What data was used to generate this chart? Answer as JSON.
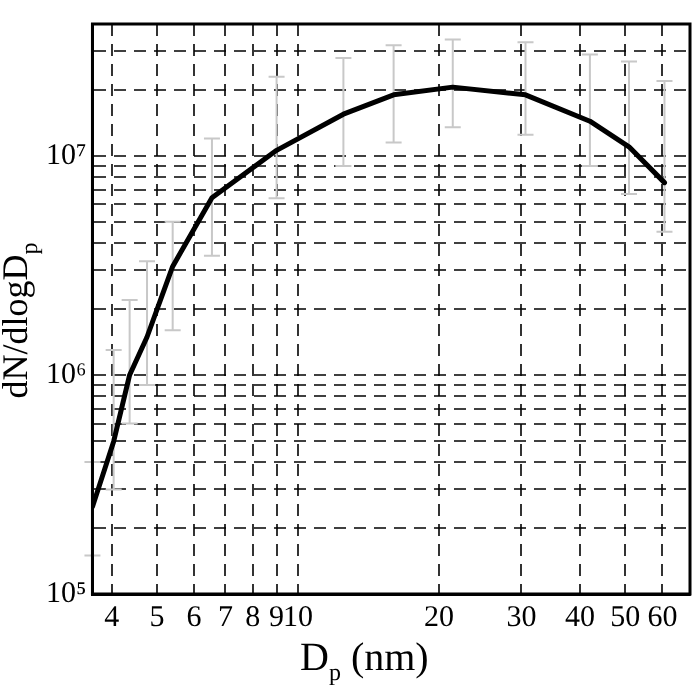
{
  "chart_data": {
    "type": "line",
    "xlabel": "D$_{p}$ (nm)",
    "ylabel": "dN/dlogD$_{p}$",
    "log": "xy",
    "grid": true,
    "marker": "none",
    "line_style": "solid",
    "xlim": [
      3.64,
      68.7
    ],
    "ylim": [
      100000,
      40000000
    ],
    "xticks": [
      4,
      5,
      6,
      7,
      8,
      9,
      10,
      20,
      30,
      40,
      50,
      60
    ],
    "yticks": [
      {
        "value": 100000,
        "label": "10⁵"
      },
      {
        "value": 200000,
        "label": null
      },
      {
        "value": 300000,
        "label": null
      },
      {
        "value": 400000,
        "label": null
      },
      {
        "value": 500000,
        "label": null
      },
      {
        "value": 600000,
        "label": null
      },
      {
        "value": 700000,
        "label": null
      },
      {
        "value": 800000,
        "label": null
      },
      {
        "value": 900000,
        "label": null
      },
      {
        "value": 1000000,
        "label": "10⁶"
      },
      {
        "value": 2000000,
        "label": null
      },
      {
        "value": 3000000,
        "label": null
      },
      {
        "value": 4000000,
        "label": null
      },
      {
        "value": 5000000,
        "label": null
      },
      {
        "value": 6000000,
        "label": null
      },
      {
        "value": 7000000,
        "label": null
      },
      {
        "value": 8000000,
        "label": null
      },
      {
        "value": 9000000,
        "label": null
      },
      {
        "value": 10000000,
        "label": "10⁷"
      },
      {
        "value": 20000000,
        "label": null
      },
      {
        "value": 30000000,
        "label": null
      }
    ],
    "series": [
      {
        "color": "#000000",
        "x": [
          3.64,
          4.04,
          4.37,
          4.76,
          5.4,
          6.55,
          9.0,
          12.5,
          16.0,
          21.4,
          30.6,
          42,
          50.9,
          60.6
        ],
        "values": [
          250000,
          497000,
          1000000,
          1490000,
          3130000,
          6440000,
          10600000,
          15500000,
          19000000,
          20600000,
          19000000,
          14400000,
          11000000,
          7550000
        ],
        "errors": [
          [
            150000,
            400000
          ],
          [
            300000,
            1300000
          ],
          [
            600000,
            2200000
          ],
          [
            900000,
            3300000
          ],
          [
            1600000,
            5000000
          ],
          [
            3500000,
            12000000
          ],
          [
            6400000,
            23000000
          ],
          [
            9000000,
            28000000
          ],
          [
            11500000,
            32000000
          ],
          [
            13500000,
            34000000
          ],
          [
            12500000,
            33000000
          ],
          [
            9000000,
            29000000
          ],
          [
            6700000,
            27000000
          ],
          [
            4500000,
            22000000
          ]
        ]
      }
    ]
  }
}
